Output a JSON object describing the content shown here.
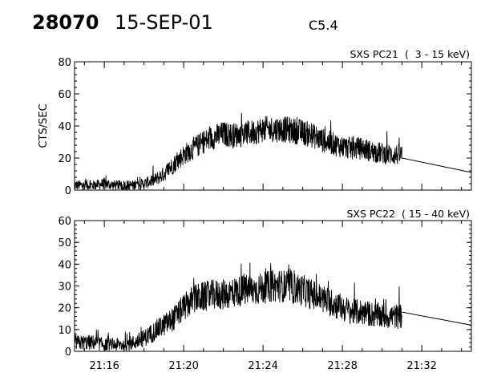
{
  "header": {
    "event_number": "28070",
    "date": "15-SEP-01",
    "flare_class": "C5.4"
  },
  "chart_data": [
    {
      "type": "line",
      "title": "SXS PC21  (  3 - 15 keV)",
      "ylabel": "CTS/SEC",
      "xlabel": "",
      "xlim": [
        "21:14:30",
        "21:34:30"
      ],
      "ylim": [
        0,
        80
      ],
      "yticks": [
        "0",
        "20",
        "40",
        "60",
        "80"
      ],
      "xticks": [],
      "grid": false,
      "series": [
        {
          "x": [
            "21:14:30",
            "21:15:00",
            "21:15:30",
            "21:16:00",
            "21:16:30",
            "21:17:00",
            "21:17:30",
            "21:18:00",
            "21:18:30",
            "21:19:00",
            "21:19:30",
            "21:20:00",
            "21:20:30",
            "21:21:00",
            "21:21:30",
            "21:22:00",
            "21:22:30",
            "21:23:00",
            "21:23:30",
            "21:24:00",
            "21:24:30",
            "21:25:00",
            "21:25:30",
            "21:26:00",
            "21:26:30",
            "21:27:00",
            "21:27:30",
            "21:28:00",
            "21:28:30",
            "21:29:00",
            "21:29:30",
            "21:30:00",
            "21:30:30",
            "21:31:00"
          ],
          "values": [
            3,
            3,
            3,
            4,
            3,
            3,
            3,
            4,
            6,
            10,
            16,
            22,
            26,
            30,
            33,
            35,
            34,
            35,
            36,
            38,
            38,
            38,
            37,
            36,
            34,
            31,
            29,
            27,
            26,
            26,
            24,
            23,
            22,
            22
          ]
        },
        {
          "x": [
            "21:31:00",
            "21:34:30"
          ],
          "values": [
            20,
            11
          ]
        }
      ]
    },
    {
      "type": "line",
      "title": "SXS PC22  ( 15 - 40 keV)",
      "ylabel": "",
      "xlabel": "",
      "xlim": [
        "21:14:30",
        "21:34:30"
      ],
      "ylim": [
        0,
        60
      ],
      "yticks": [
        "0",
        "10",
        "20",
        "30",
        "40",
        "50",
        "60"
      ],
      "xticks": [
        "21:16",
        "21:20",
        "21:24",
        "21:28",
        "21:32"
      ],
      "grid": false,
      "series": [
        {
          "x": [
            "21:14:30",
            "21:15:00",
            "21:15:30",
            "21:16:00",
            "21:16:30",
            "21:17:00",
            "21:17:30",
            "21:18:00",
            "21:18:30",
            "21:19:00",
            "21:19:30",
            "21:20:00",
            "21:20:30",
            "21:21:00",
            "21:21:30",
            "21:22:00",
            "21:22:30",
            "21:23:00",
            "21:23:30",
            "21:24:00",
            "21:24:30",
            "21:25:00",
            "21:25:30",
            "21:26:00",
            "21:26:30",
            "21:27:00",
            "21:27:30",
            "21:28:00",
            "21:28:30",
            "21:29:00",
            "21:29:30",
            "21:30:00",
            "21:30:30",
            "21:31:00"
          ],
          "values": [
            4,
            4,
            4,
            3,
            3,
            3,
            4,
            6,
            9,
            12,
            15,
            20,
            24,
            25,
            26,
            26,
            27,
            28,
            28,
            29,
            30,
            30,
            29,
            28,
            26,
            24,
            22,
            20,
            18,
            18,
            17,
            16,
            16,
            16
          ]
        },
        {
          "x": [
            "21:31:00",
            "21:34:30"
          ],
          "values": [
            18,
            12
          ]
        }
      ]
    }
  ]
}
